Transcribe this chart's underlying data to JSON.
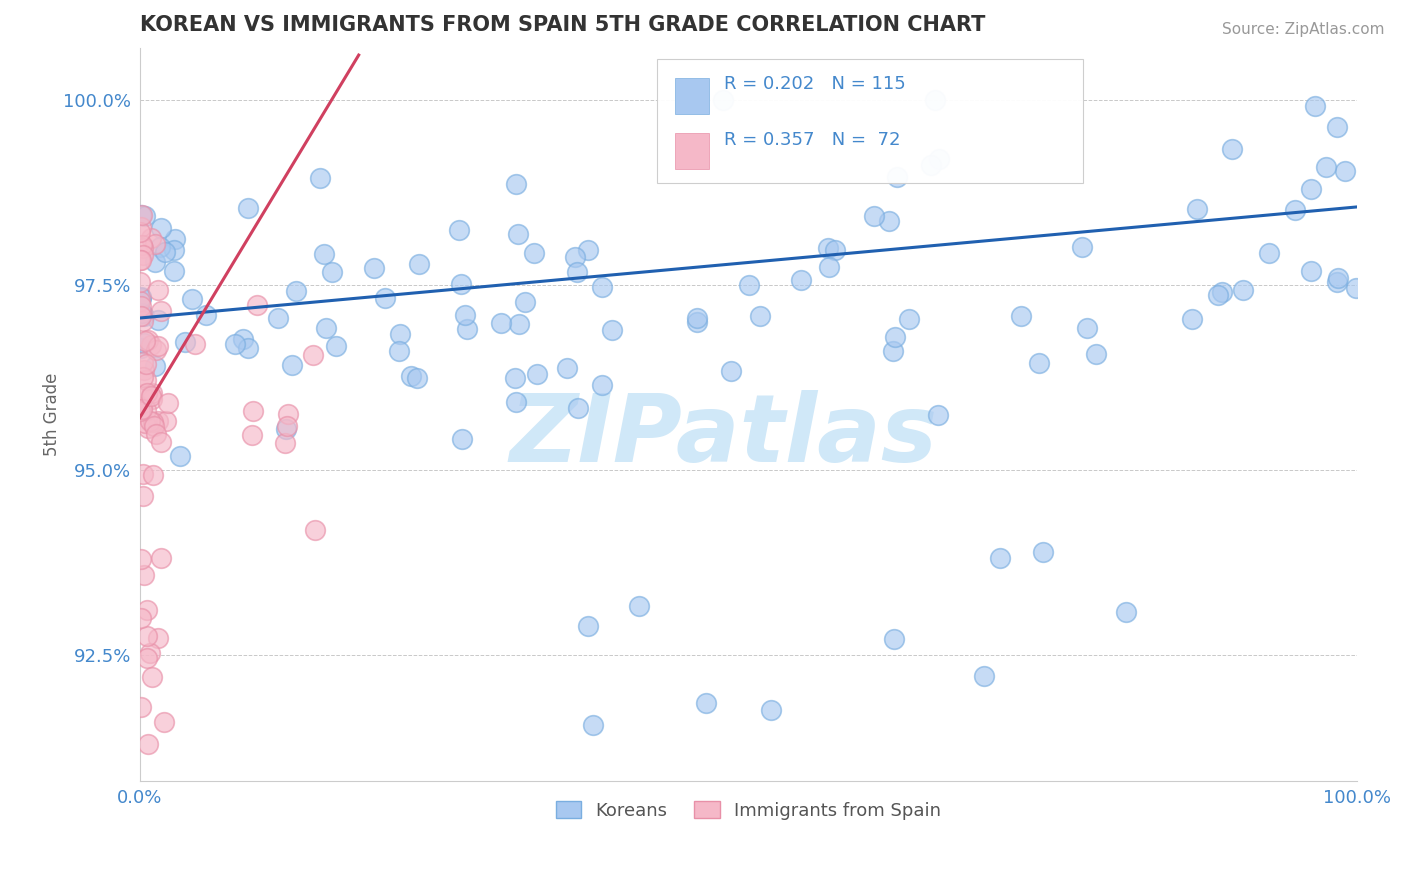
{
  "title": "KOREAN VS IMMIGRANTS FROM SPAIN 5TH GRADE CORRELATION CHART",
  "source_text": "Source: ZipAtlas.com",
  "ylabel": "5th Grade",
  "xlim": [
    0.0,
    1.0
  ],
  "ylim": [
    0.908,
    1.007
  ],
  "yticks": [
    0.925,
    0.95,
    0.975,
    1.0
  ],
  "ytick_labels": [
    "92.5%",
    "95.0%",
    "97.5%",
    "100.0%"
  ],
  "xtick_labels": [
    "0.0%",
    "100.0%"
  ],
  "xticks": [
    0.0,
    1.0
  ],
  "legend_label_blue": "Koreans",
  "legend_label_pink": "Immigrants from Spain",
  "blue_color": "#a8c8f0",
  "blue_edge_color": "#7aaee0",
  "pink_color": "#f5b8c8",
  "pink_edge_color": "#e890a8",
  "blue_line_color": "#2060b0",
  "pink_line_color": "#d04060",
  "watermark_color": "#d0e8f8",
  "grid_color": "#bbbbbb",
  "title_color": "#333333",
  "axis_tick_color": "#4488cc",
  "ylabel_color": "#666666",
  "source_color": "#999999",
  "blue_line_x0": 0.0,
  "blue_line_x1": 1.0,
  "blue_line_y0": 0.9705,
  "blue_line_y1": 0.9855,
  "pink_line_x0": 0.0,
  "pink_line_x1": 0.18,
  "pink_line_y0": 0.957,
  "pink_line_y1": 1.006
}
